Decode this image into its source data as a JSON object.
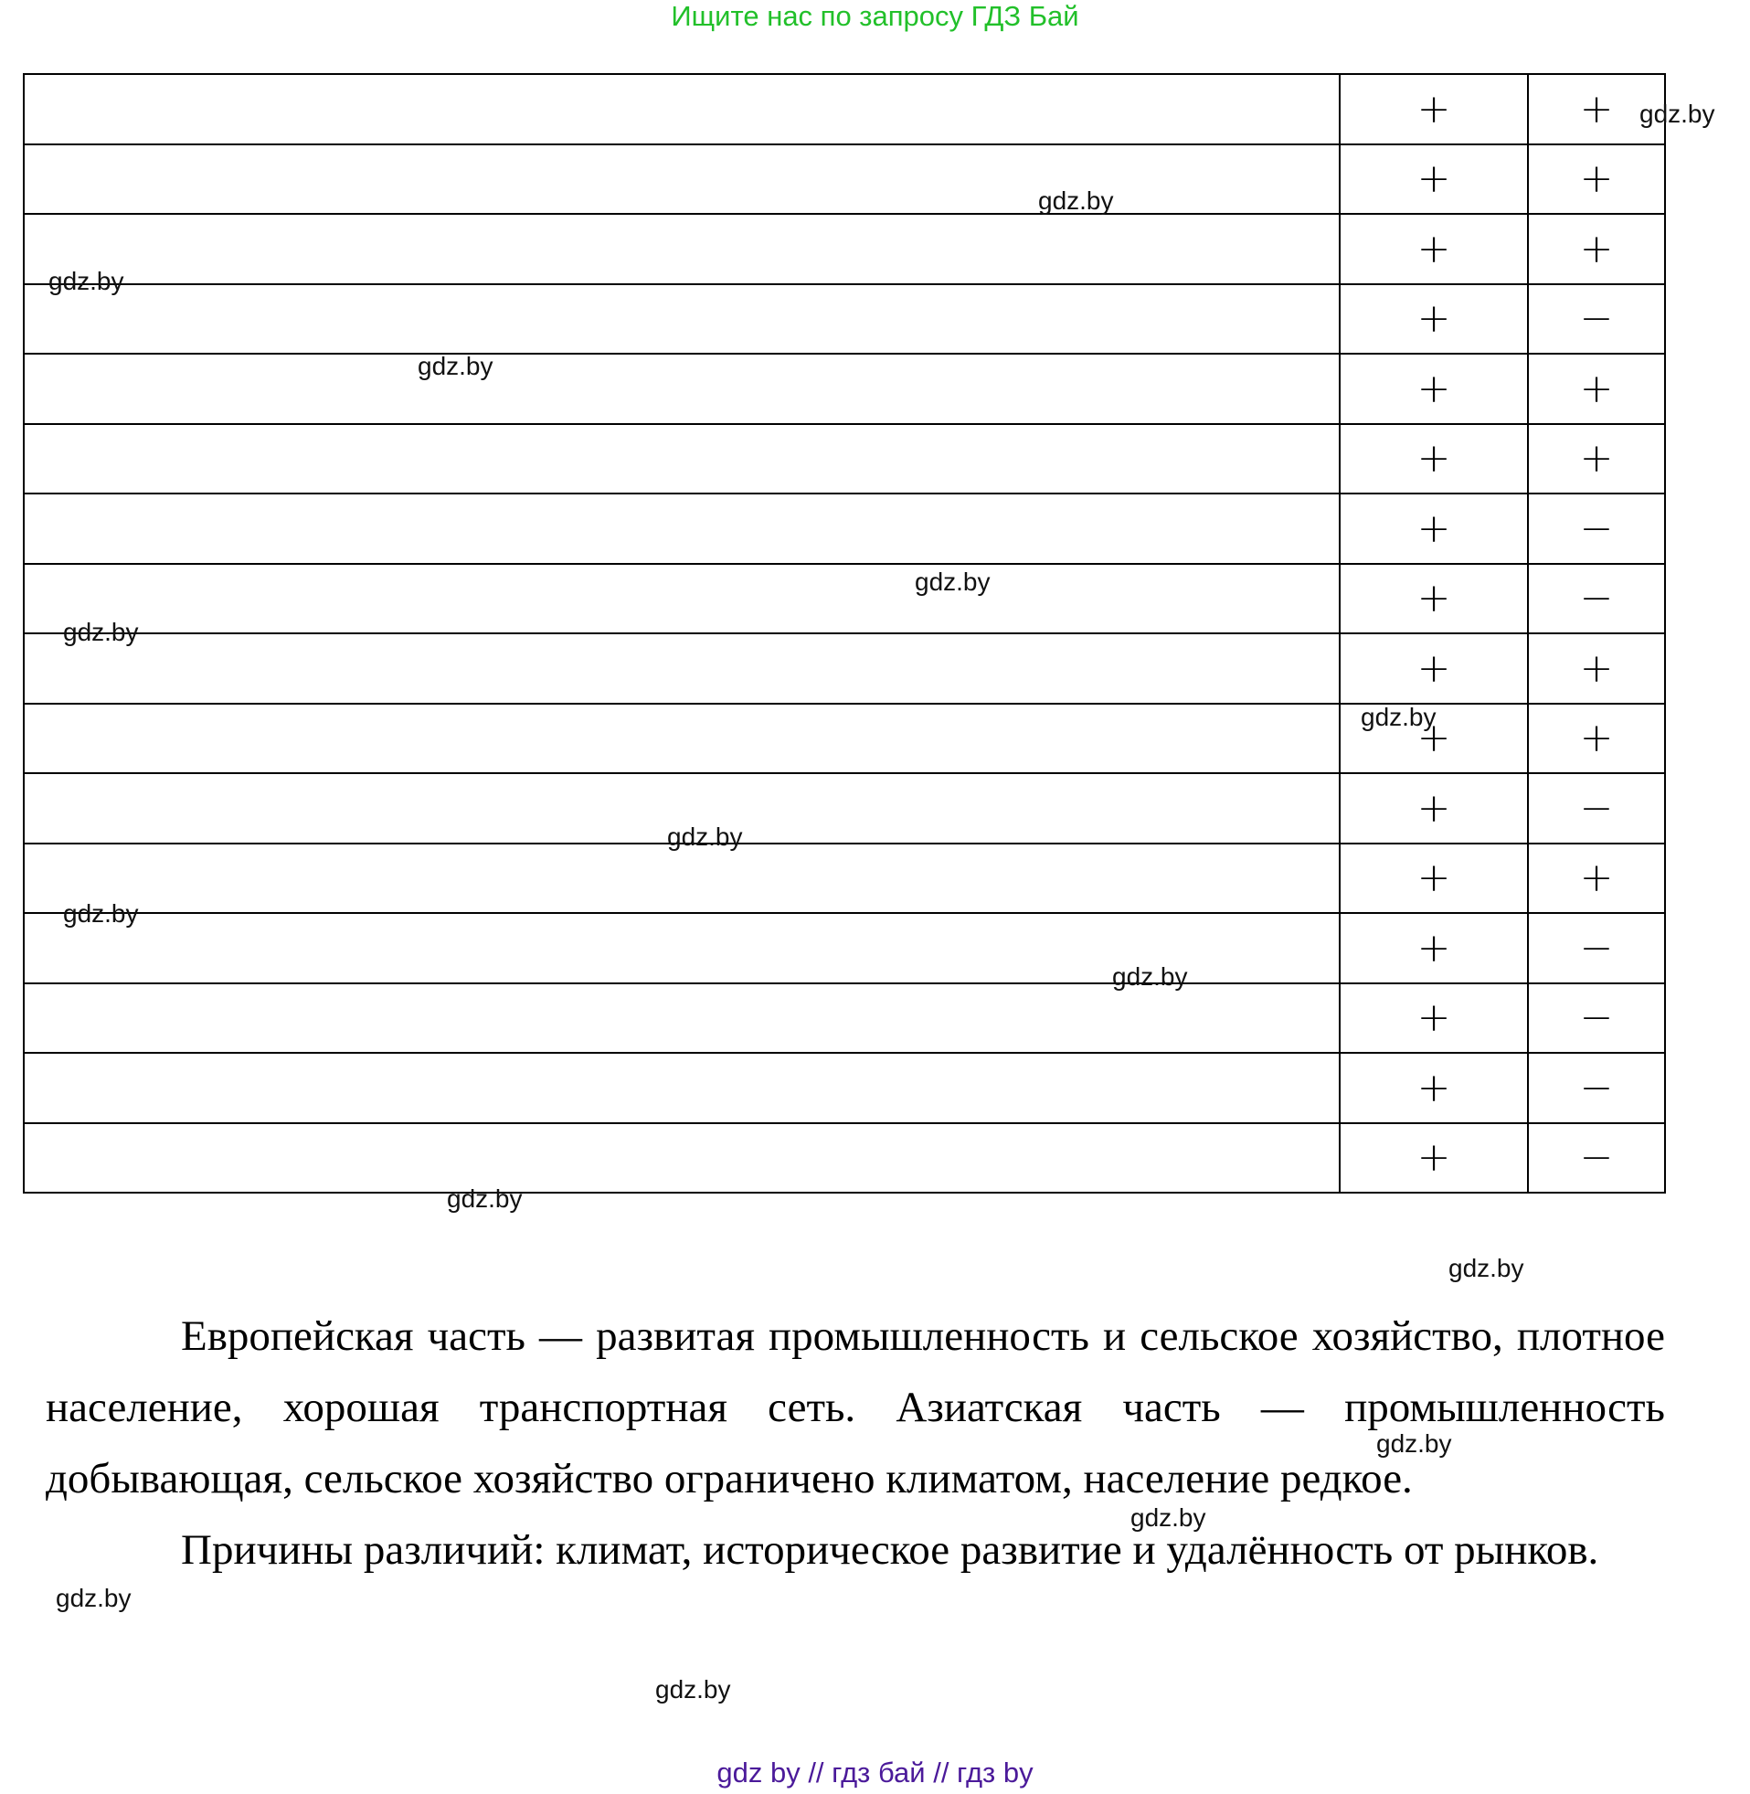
{
  "banner": "Ищите нас по запросу ГДЗ Бай",
  "table": {
    "rows": [
      [
        "",
        "+",
        "+"
      ],
      [
        "",
        "+",
        "+"
      ],
      [
        "",
        "+",
        "+"
      ],
      [
        "",
        "+",
        "−"
      ],
      [
        "",
        "+",
        "+"
      ],
      [
        "",
        "+",
        "+"
      ],
      [
        "",
        "+",
        "−"
      ],
      [
        "",
        "+",
        "−"
      ],
      [
        "",
        "+",
        "+"
      ],
      [
        "",
        "+",
        "+"
      ],
      [
        "",
        "+",
        "−"
      ],
      [
        "",
        "+",
        "+"
      ],
      [
        "",
        "+",
        "−"
      ],
      [
        "",
        "+",
        "−"
      ],
      [
        "",
        "+",
        "−"
      ],
      [
        "",
        "+",
        "−"
      ]
    ]
  },
  "paragraphs": [
    "Европейская часть — развитая промышленность и сельское хозяйство, плотное население, хорошая транспортная сеть. Азиатская часть — промышленность добывающая, сельское хозяйство ограничено климатом, население редкое.",
    "Причины различий: климат, историческое развитие и удалённость от рынков."
  ],
  "watermark": "gdz.by",
  "footer": "gdz by  //  гдз бай  //  гдз by",
  "colors": {
    "banner": "#22c02a",
    "footer": "#4b1a9a"
  }
}
